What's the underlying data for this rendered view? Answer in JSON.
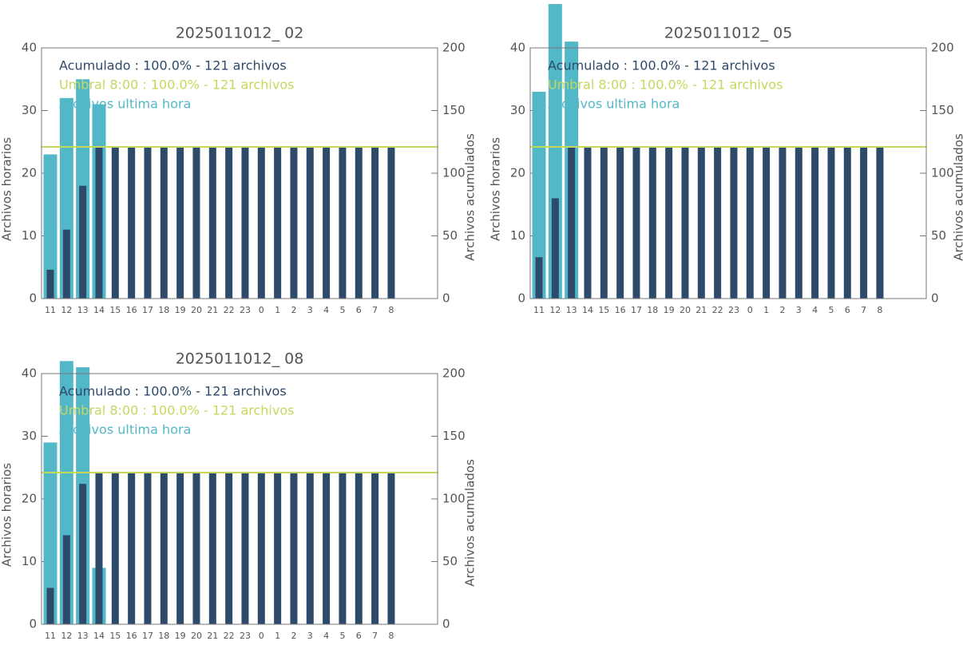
{
  "chart_data": [
    {
      "type": "bar",
      "title": "2025011012_ 02",
      "categories": [
        "11",
        "12",
        "13",
        "14",
        "15",
        "16",
        "17",
        "18",
        "19",
        "20",
        "21",
        "22",
        "23",
        "0",
        "1",
        "2",
        "3",
        "4",
        "5",
        "6",
        "7",
        "8"
      ],
      "series": [
        {
          "name": "Archivos ultima hora",
          "color": "#52b8c8",
          "values": [
            23,
            32,
            35,
            31,
            0,
            0,
            0,
            0,
            0,
            0,
            0,
            0,
            0,
            0,
            0,
            0,
            0,
            0,
            0,
            0,
            0,
            0
          ]
        },
        {
          "name": "Acumulado : 100.0% - 121 archivos",
          "color": "#2d4a6a",
          "axis": "y2",
          "values": [
            23,
            55,
            90,
            121,
            121,
            121,
            121,
            121,
            121,
            121,
            121,
            121,
            121,
            121,
            121,
            121,
            121,
            121,
            121,
            121,
            121,
            121
          ]
        }
      ],
      "threshold": {
        "name": "Umbral 8:00 : 100.0% - 121 archivos",
        "color": "#c9d65c",
        "axis": "y2",
        "value": 121
      },
      "ylabel": "Archivos horarios",
      "y2label": "Archivos acumulados",
      "ylim": [
        0,
        40
      ],
      "yticks": [
        0,
        10,
        20,
        30,
        40
      ],
      "y2lim": [
        0,
        200
      ],
      "y2ticks": [
        0,
        50,
        100,
        150,
        200
      ]
    },
    {
      "type": "bar",
      "title": "2025011012_ 05",
      "categories": [
        "11",
        "12",
        "13",
        "14",
        "15",
        "16",
        "17",
        "18",
        "19",
        "20",
        "21",
        "22",
        "23",
        "0",
        "1",
        "2",
        "3",
        "4",
        "5",
        "6",
        "7",
        "8"
      ],
      "series": [
        {
          "name": "Archivos ultima hora",
          "color": "#52b8c8",
          "values": [
            33,
            47,
            41,
            0,
            0,
            0,
            0,
            0,
            0,
            0,
            0,
            0,
            0,
            0,
            0,
            0,
            0,
            0,
            0,
            0,
            0,
            0
          ]
        },
        {
          "name": "Acumulado : 100.0% - 121 archivos",
          "color": "#2d4a6a",
          "axis": "y2",
          "values": [
            33,
            80,
            121,
            121,
            121,
            121,
            121,
            121,
            121,
            121,
            121,
            121,
            121,
            121,
            121,
            121,
            121,
            121,
            121,
            121,
            121,
            121
          ]
        }
      ],
      "threshold": {
        "name": "Umbral 8:00 : 100.0% - 121 archivos",
        "color": "#c9d65c",
        "axis": "y2",
        "value": 121
      },
      "ylabel": "Archivos horarios",
      "y2label": "Archivos acumulados",
      "ylim": [
        0,
        40
      ],
      "yticks": [
        0,
        10,
        20,
        30,
        40
      ],
      "y2lim": [
        0,
        200
      ],
      "y2ticks": [
        0,
        50,
        100,
        150,
        200
      ]
    },
    {
      "type": "bar",
      "title": "2025011012_ 08",
      "categories": [
        "11",
        "12",
        "13",
        "14",
        "15",
        "16",
        "17",
        "18",
        "19",
        "20",
        "21",
        "22",
        "23",
        "0",
        "1",
        "2",
        "3",
        "4",
        "5",
        "6",
        "7",
        "8"
      ],
      "series": [
        {
          "name": "Archivos ultima hora",
          "color": "#52b8c8",
          "values": [
            29,
            42,
            41,
            9,
            0,
            0,
            0,
            0,
            0,
            0,
            0,
            0,
            0,
            0,
            0,
            0,
            0,
            0,
            0,
            0,
            0,
            0
          ]
        },
        {
          "name": "Acumulado : 100.0% - 121 archivos",
          "color": "#2d4a6a",
          "axis": "y2",
          "values": [
            29,
            71,
            112,
            121,
            121,
            121,
            121,
            121,
            121,
            121,
            121,
            121,
            121,
            121,
            121,
            121,
            121,
            121,
            121,
            121,
            121,
            121
          ]
        }
      ],
      "threshold": {
        "name": "Umbral 8:00 : 100.0% - 121 archivos",
        "color": "#c9d65c",
        "axis": "y2",
        "value": 121
      },
      "ylabel": "Archivos horarios",
      "y2label": "Archivos acumulados",
      "ylim": [
        0,
        40
      ],
      "yticks": [
        0,
        10,
        20,
        30,
        40
      ],
      "y2lim": [
        0,
        200
      ],
      "y2ticks": [
        0,
        50,
        100,
        150,
        200
      ]
    }
  ]
}
